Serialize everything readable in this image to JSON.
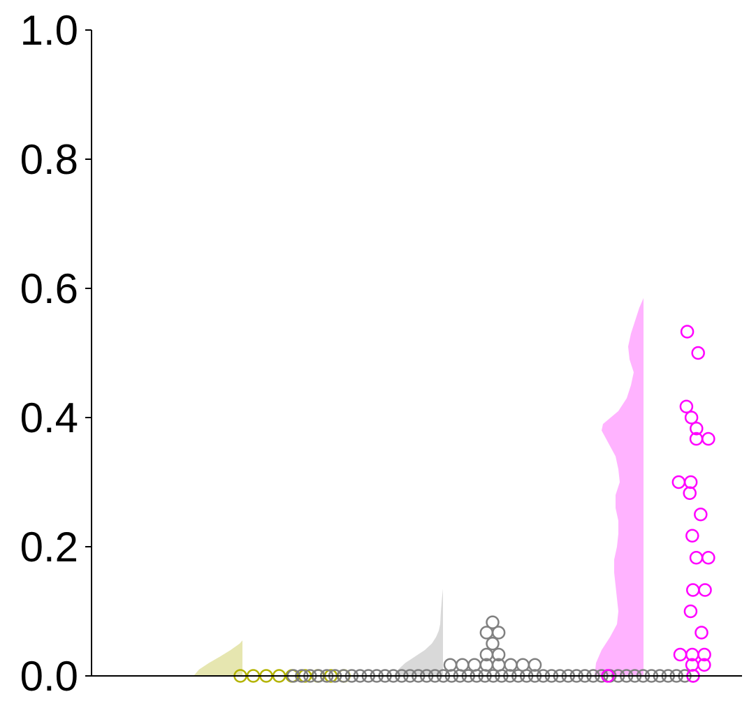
{
  "chart_data": {
    "type": "scatter",
    "subtype": "raincloud (half-violin density + swarm of points)",
    "title": "",
    "xlabel": "",
    "ylabel": "",
    "ylim": [
      0.0,
      1.0
    ],
    "yticks": [
      {
        "value": 0.0,
        "label": "0.0"
      },
      {
        "value": 0.2,
        "label": "0.2"
      },
      {
        "value": 0.4,
        "label": "0.4"
      },
      {
        "value": 0.6,
        "label": "0.6"
      },
      {
        "value": 0.8,
        "label": "0.8"
      },
      {
        "value": 1.0,
        "label": "1.0"
      }
    ],
    "x_ticks_shown": false,
    "grid": false,
    "legend": "none",
    "series": [
      {
        "color": "#b3b300",
        "density_color": "#e6e6b0",
        "density_max_y": 0.055,
        "values": [
          0,
          0,
          0,
          0,
          0,
          0,
          0,
          0,
          0
        ]
      },
      {
        "color": "#808080",
        "density_color": "#d9d9d9",
        "density_max_y": 0.135,
        "values": [
          0,
          0,
          0,
          0,
          0,
          0,
          0,
          0,
          0,
          0,
          0,
          0,
          0,
          0,
          0,
          0,
          0,
          0,
          0,
          0,
          0,
          0,
          0,
          0,
          0,
          0,
          0,
          0,
          0,
          0,
          0,
          0,
          0,
          0,
          0,
          0,
          0,
          0,
          0,
          0,
          0,
          0,
          0,
          0,
          0,
          0,
          0,
          0,
          0,
          0.017,
          0.017,
          0.017,
          0.017,
          0.017,
          0.017,
          0.017,
          0.017,
          0.033,
          0.033,
          0.05,
          0.067,
          0.067,
          0.083
        ]
      },
      {
        "color": "#ff00ff",
        "density_color": "#ffb3ff",
        "density_max_y": 0.585,
        "values": [
          0,
          0,
          0.017,
          0.017,
          0.033,
          0.033,
          0.033,
          0.067,
          0.1,
          0.133,
          0.133,
          0.183,
          0.183,
          0.217,
          0.25,
          0.283,
          0.3,
          0.3,
          0.367,
          0.367,
          0.383,
          0.4,
          0.417,
          0.5,
          0.533
        ]
      }
    ]
  }
}
